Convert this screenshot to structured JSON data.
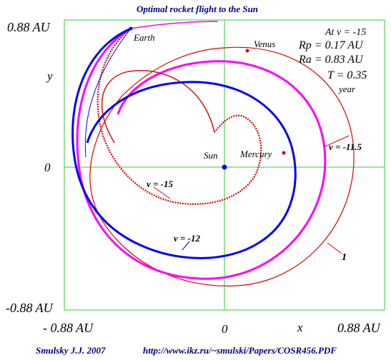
{
  "title": "Optimal rocket flight to the Sun",
  "axis": {
    "x_max": "0.88 AU",
    "x_min": "- 0.88 AU",
    "y_max": "0.88 AU",
    "y_min": "-0.88 AU",
    "x_zero": "0",
    "y_zero": "0",
    "x_label": "x",
    "y_label": "y"
  },
  "params": {
    "at_v": "At  v = -15",
    "rp": "Rp  = 0.17 AU",
    "ra": "Ra  = 0.83 AU",
    "t": "T = 0.35",
    "t_unit": "year"
  },
  "labels": {
    "earth": "Earth",
    "venus": "Venus",
    "sun": "Sun",
    "mercury": "Mercury",
    "v115": "v = -11.5",
    "v15": "v = -15",
    "v12": "v = -12",
    "one": "1"
  },
  "footer": {
    "author": "Smulsky J.J. 2007",
    "url": "http://www.ikz.ru/~smulski/Papers/COSR456.PDF"
  },
  "colors": {
    "frame": "#33cc33",
    "blue": "#0000ff",
    "magenta": "#ff00ff",
    "red": "#dd0000",
    "title": "#000080"
  }
}
